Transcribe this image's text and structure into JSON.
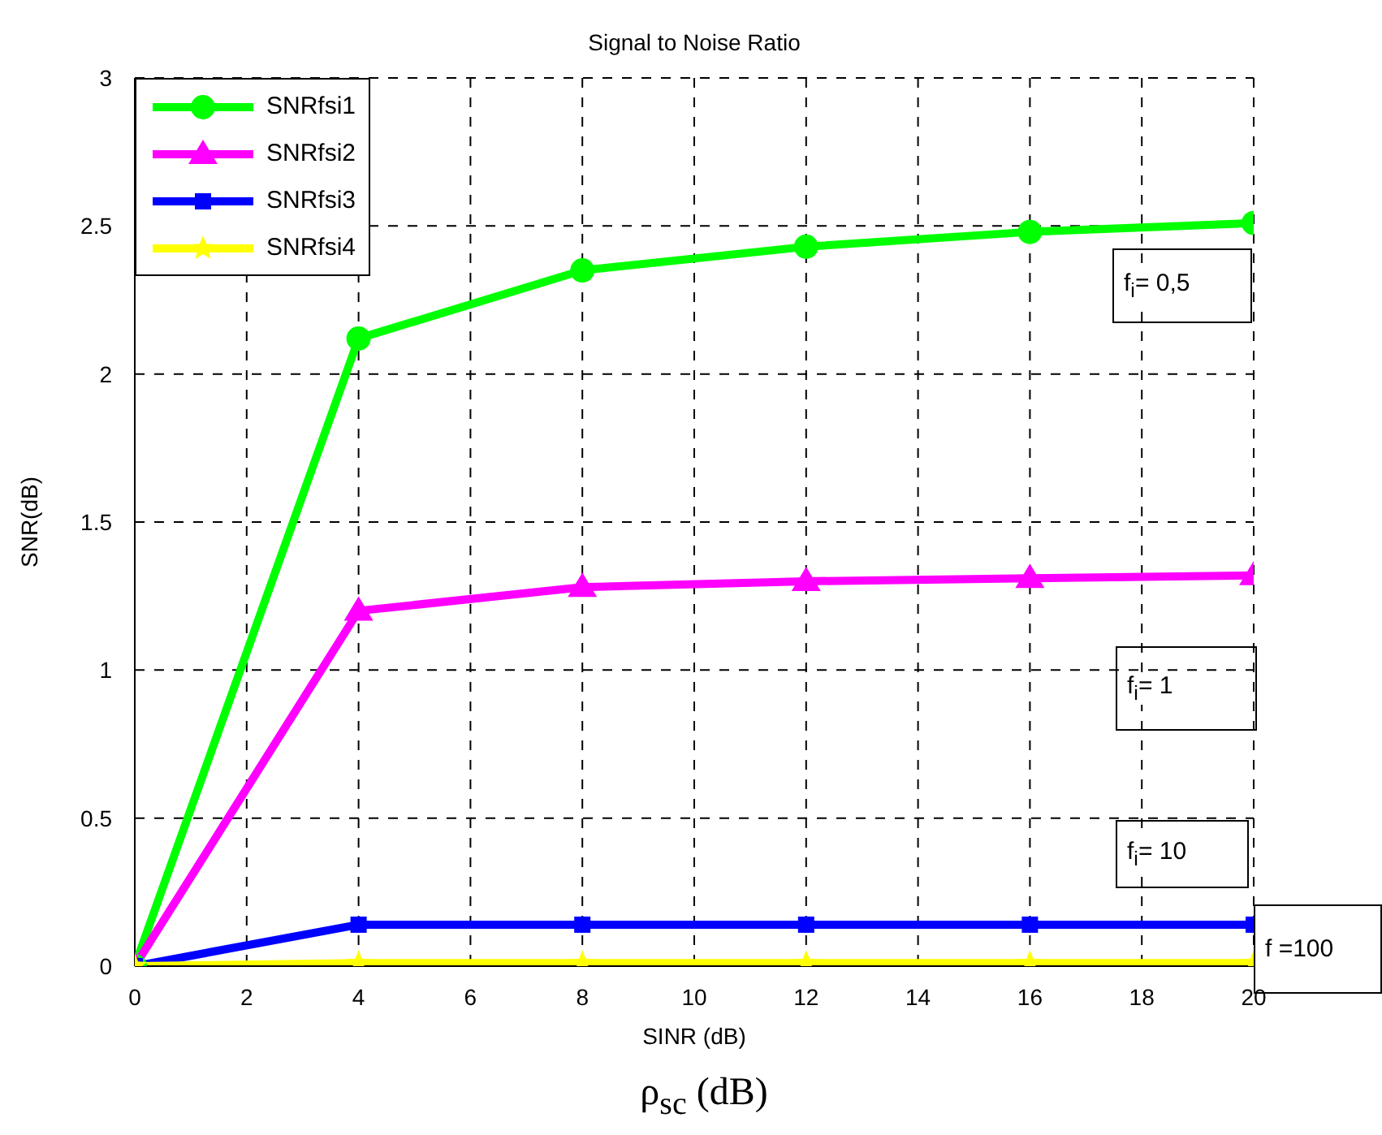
{
  "chart_data": {
    "type": "line",
    "title": "Signal to Noise Ratio",
    "xlabel": "SINR (dB)",
    "ylabel": "SNR(dB)",
    "x": [
      0,
      4,
      8,
      12,
      16,
      20
    ],
    "series": [
      {
        "name": "SNRfsi1",
        "color": "#00ff00",
        "marker": "circle",
        "values": [
          0,
          2.12,
          2.35,
          2.43,
          2.48,
          2.51
        ]
      },
      {
        "name": "SNRfsi2",
        "color": "#ff00ff",
        "marker": "triangle",
        "values": [
          0,
          1.2,
          1.28,
          1.3,
          1.31,
          1.32
        ]
      },
      {
        "name": "SNRfsi3",
        "color": "#0000ff",
        "marker": "square",
        "values": [
          0,
          0.14,
          0.14,
          0.14,
          0.14,
          0.14
        ]
      },
      {
        "name": "SNRfsi4",
        "color": "#ffff00",
        "marker": "star",
        "values": [
          0,
          0.01,
          0.01,
          0.01,
          0.01,
          0.01
        ]
      }
    ],
    "xlim": [
      0,
      20
    ],
    "xticks": [
      0,
      2,
      4,
      6,
      8,
      10,
      12,
      14,
      16,
      18,
      20
    ],
    "ylim": [
      0,
      3
    ],
    "yticks": [
      0,
      0.5,
      1,
      1.5,
      2,
      2.5,
      3
    ],
    "grid": true,
    "legend": "top left",
    "line_style": "solid",
    "annotations": [
      "f$_{i}$= 0,5",
      "f$_{i}$= 1",
      "f$_{i}$= 10",
      "f =100",
      "ρ$_{sc}$ (dB)"
    ]
  }
}
